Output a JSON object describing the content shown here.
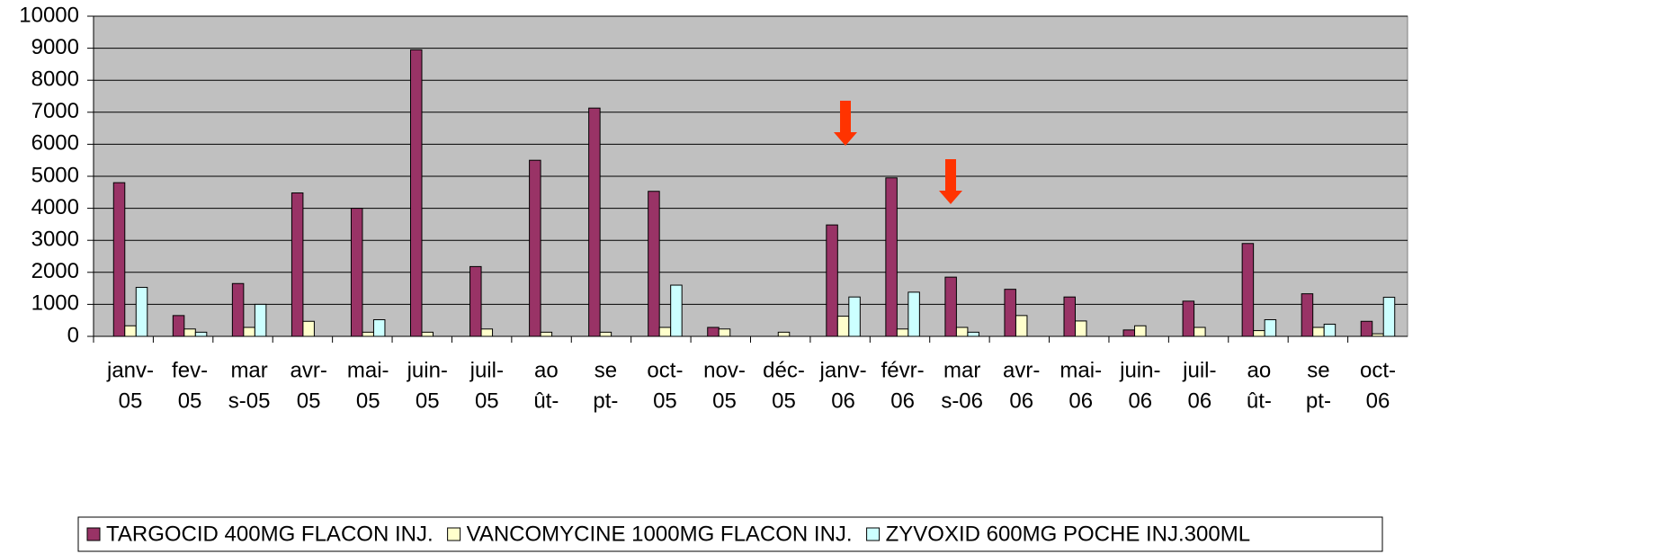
{
  "chart_data": {
    "type": "bar",
    "categories": [
      [
        "janv-",
        "05"
      ],
      [
        "fev-",
        "05"
      ],
      [
        "mar",
        "s-05"
      ],
      [
        "avr-",
        "05"
      ],
      [
        "mai-",
        "05"
      ],
      [
        "juin-",
        "05"
      ],
      [
        "juil-",
        "05"
      ],
      [
        "ao",
        "ût-"
      ],
      [
        "se",
        "pt-"
      ],
      [
        "oct-",
        "05"
      ],
      [
        "nov-",
        "05"
      ],
      [
        "déc-",
        "05"
      ],
      [
        "janv-",
        "06"
      ],
      [
        "févr-",
        "06"
      ],
      [
        "mar",
        "s-06"
      ],
      [
        "avr-",
        "06"
      ],
      [
        "mai-",
        "06"
      ],
      [
        "juin-",
        "06"
      ],
      [
        "juil-",
        "06"
      ],
      [
        "ao",
        "ût-"
      ],
      [
        "se",
        "pt-"
      ],
      [
        "oct-",
        "06"
      ]
    ],
    "series": [
      {
        "name": "TARGOCID 400MG FLACON INJ.",
        "color": "#993366",
        "values": [
          4800,
          650,
          1650,
          4480,
          4000,
          8950,
          2180,
          5500,
          7130,
          4530,
          280,
          0,
          3480,
          4950,
          1850,
          1470,
          1230,
          200,
          1100,
          2900,
          1330,
          470
        ]
      },
      {
        "name": "VANCOMYCINE 1000MG FLACON INJ.",
        "color": "#ffffcc",
        "values": [
          330,
          230,
          280,
          470,
          130,
          130,
          230,
          130,
          130,
          280,
          230,
          130,
          630,
          230,
          280,
          650,
          480,
          330,
          280,
          180,
          280,
          80
        ]
      },
      {
        "name": "ZYVOXID 600MG POCHE INJ.300ML",
        "color": "#ccffff",
        "values": [
          1530,
          130,
          1000,
          0,
          520,
          0,
          0,
          0,
          0,
          1600,
          0,
          0,
          1230,
          1380,
          130,
          0,
          0,
          0,
          0,
          520,
          380,
          1220
        ]
      }
    ],
    "ylim": [
      0,
      10000
    ],
    "yticks": [
      0,
      1000,
      2000,
      3000,
      4000,
      5000,
      6000,
      7000,
      8000,
      9000,
      10000
    ],
    "grid": true,
    "plot_background": "#c0c0c0",
    "legend": "bottom"
  }
}
